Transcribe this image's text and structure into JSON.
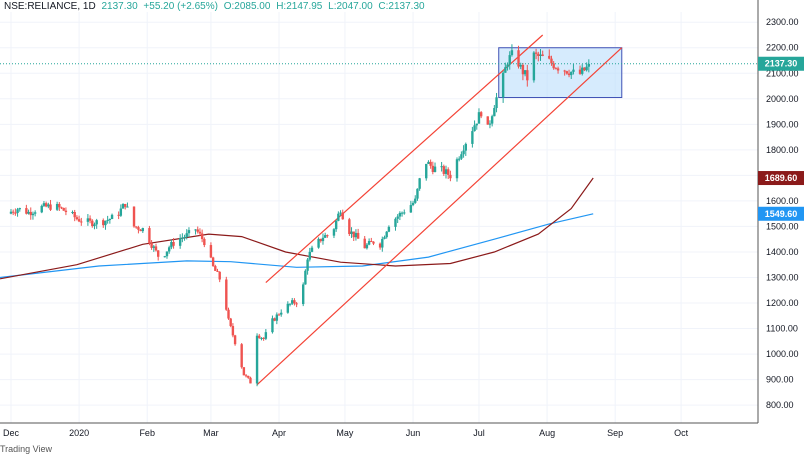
{
  "header": {
    "symbol": "NSE:RELIANCE, 1D",
    "last": "2137.30",
    "change": "+55.20 (+2.65%)",
    "open": "O:2085.00",
    "high": "H:2147.95",
    "low": "L:2047.00",
    "close": "C:2137.30"
  },
  "footer": {
    "text": "Trading View"
  },
  "colors": {
    "up": "#26a69a",
    "down": "#ef5350",
    "ma_long": "#2196f3",
    "ma_short": "#8b1a1a",
    "channel": "#f44336",
    "rect_fill": "#bbdefb",
    "rect_border": "#3f51b5",
    "price_line": "#26a69a"
  },
  "chart_data": {
    "type": "candlestick",
    "y_ticks": [
      "800.00",
      "900.00",
      "1000.00",
      "1100.00",
      "1200.00",
      "1300.00",
      "1400.00",
      "1500.00",
      "1600.00",
      "1700.00",
      "1800.00",
      "1900.00",
      "2000.00",
      "2100.00",
      "2200.00",
      "2300.00"
    ],
    "ylim": [
      730,
      2340
    ],
    "x_labels": [
      {
        "label": "Dec",
        "day": 0
      },
      {
        "label": "2020",
        "day": 31
      },
      {
        "label": "Feb",
        "day": 62
      },
      {
        "label": "Mar",
        "day": 91
      },
      {
        "label": "Apr",
        "day": 122
      },
      {
        "label": "May",
        "day": 152
      },
      {
        "label": "Jun",
        "day": 183
      },
      {
        "label": "Jul",
        "day": 213
      },
      {
        "label": "Aug",
        "day": 244
      },
      {
        "label": "Sep",
        "day": 275
      },
      {
        "label": "Oct",
        "day": 305
      }
    ],
    "xlim": [
      -5,
      340
    ],
    "price_labels": [
      {
        "text": "2137.30",
        "value": 2137.3,
        "color": "#26a69a"
      },
      {
        "text": "1689.60",
        "value": 1689.6,
        "color": "#8b1a1a"
      },
      {
        "text": "1549.60",
        "value": 1549.6,
        "color": "#2196f3"
      }
    ],
    "last_price": 2137.3,
    "key_closes": [
      {
        "day": -2,
        "close": 1550
      },
      {
        "day": 3,
        "close": 1570
      },
      {
        "day": 8,
        "close": 1555
      },
      {
        "day": 14,
        "close": 1575
      },
      {
        "day": 20,
        "close": 1580
      },
      {
        "day": 26,
        "close": 1555
      },
      {
        "day": 30,
        "close": 1530
      },
      {
        "day": 36,
        "close": 1515
      },
      {
        "day": 42,
        "close": 1520
      },
      {
        "day": 48,
        "close": 1540
      },
      {
        "day": 52,
        "close": 1590
      },
      {
        "day": 56,
        "close": 1500
      },
      {
        "day": 60,
        "close": 1490
      },
      {
        "day": 64,
        "close": 1430
      },
      {
        "day": 68,
        "close": 1370
      },
      {
        "day": 72,
        "close": 1420
      },
      {
        "day": 76,
        "close": 1450
      },
      {
        "day": 80,
        "close": 1465
      },
      {
        "day": 84,
        "close": 1490
      },
      {
        "day": 88,
        "close": 1440
      },
      {
        "day": 92,
        "close": 1340
      },
      {
        "day": 96,
        "close": 1280
      },
      {
        "day": 99,
        "close": 1130
      },
      {
        "day": 103,
        "close": 1020
      },
      {
        "day": 106,
        "close": 920
      },
      {
        "day": 109,
        "close": 890
      },
      {
        "day": 112,
        "close": 1080
      },
      {
        "day": 115,
        "close": 1060
      },
      {
        "day": 119,
        "close": 1130
      },
      {
        "day": 124,
        "close": 1180
      },
      {
        "day": 128,
        "close": 1200
      },
      {
        "day": 132,
        "close": 1210
      },
      {
        "day": 135,
        "close": 1380
      },
      {
        "day": 138,
        "close": 1420
      },
      {
        "day": 142,
        "close": 1460
      },
      {
        "day": 146,
        "close": 1470
      },
      {
        "day": 150,
        "close": 1570
      },
      {
        "day": 153,
        "close": 1490
      },
      {
        "day": 157,
        "close": 1460
      },
      {
        "day": 161,
        "close": 1420
      },
      {
        "day": 165,
        "close": 1440
      },
      {
        "day": 168,
        "close": 1430
      },
      {
        "day": 172,
        "close": 1510
      },
      {
        "day": 176,
        "close": 1540
      },
      {
        "day": 180,
        "close": 1570
      },
      {
        "day": 184,
        "close": 1600
      },
      {
        "day": 188,
        "close": 1760
      },
      {
        "day": 192,
        "close": 1730
      },
      {
        "day": 196,
        "close": 1720
      },
      {
        "day": 200,
        "close": 1700
      },
      {
        "day": 204,
        "close": 1780
      },
      {
        "day": 208,
        "close": 1850
      },
      {
        "day": 211,
        "close": 1900
      },
      {
        "day": 214,
        "close": 1950
      },
      {
        "day": 217,
        "close": 1880
      },
      {
        "day": 220,
        "close": 1980
      },
      {
        "day": 223,
        "close": 2050
      },
      {
        "day": 226,
        "close": 2150
      },
      {
        "day": 229,
        "close": 2180
      },
      {
        "day": 232,
        "close": 2120
      },
      {
        "day": 235,
        "close": 2080
      },
      {
        "day": 238,
        "close": 2170
      },
      {
        "day": 242,
        "close": 2160
      },
      {
        "day": 246,
        "close": 2140
      },
      {
        "day": 250,
        "close": 2120
      },
      {
        "day": 254,
        "close": 2110
      },
      {
        "day": 258,
        "close": 2090
      },
      {
        "day": 262,
        "close": 2120
      },
      {
        "day": 266,
        "close": 2137.3
      }
    ],
    "ma_short": [
      {
        "day": -5,
        "v": 1295
      },
      {
        "day": 30,
        "v": 1350
      },
      {
        "day": 60,
        "v": 1430
      },
      {
        "day": 90,
        "v": 1470
      },
      {
        "day": 105,
        "v": 1460
      },
      {
        "day": 125,
        "v": 1400
      },
      {
        "day": 150,
        "v": 1360
      },
      {
        "day": 175,
        "v": 1345
      },
      {
        "day": 200,
        "v": 1355
      },
      {
        "day": 220,
        "v": 1400
      },
      {
        "day": 240,
        "v": 1470
      },
      {
        "day": 255,
        "v": 1570
      },
      {
        "day": 265,
        "v": 1689.6
      }
    ],
    "ma_long": [
      {
        "day": -5,
        "v": 1300
      },
      {
        "day": 40,
        "v": 1345
      },
      {
        "day": 80,
        "v": 1365
      },
      {
        "day": 100,
        "v": 1362
      },
      {
        "day": 130,
        "v": 1340
      },
      {
        "day": 160,
        "v": 1345
      },
      {
        "day": 190,
        "v": 1380
      },
      {
        "day": 220,
        "v": 1450
      },
      {
        "day": 245,
        "v": 1510
      },
      {
        "day": 265,
        "v": 1549.6
      }
    ],
    "channel_upper": [
      {
        "day": 116,
        "v": 1280
      },
      {
        "day": 242,
        "v": 2250
      }
    ],
    "channel_lower": [
      {
        "day": 112,
        "v": 880
      },
      {
        "day": 278,
        "v": 2200
      }
    ],
    "range_box": {
      "day_start": 222,
      "day_end": 278,
      "high": 2200,
      "low": 2005
    }
  }
}
